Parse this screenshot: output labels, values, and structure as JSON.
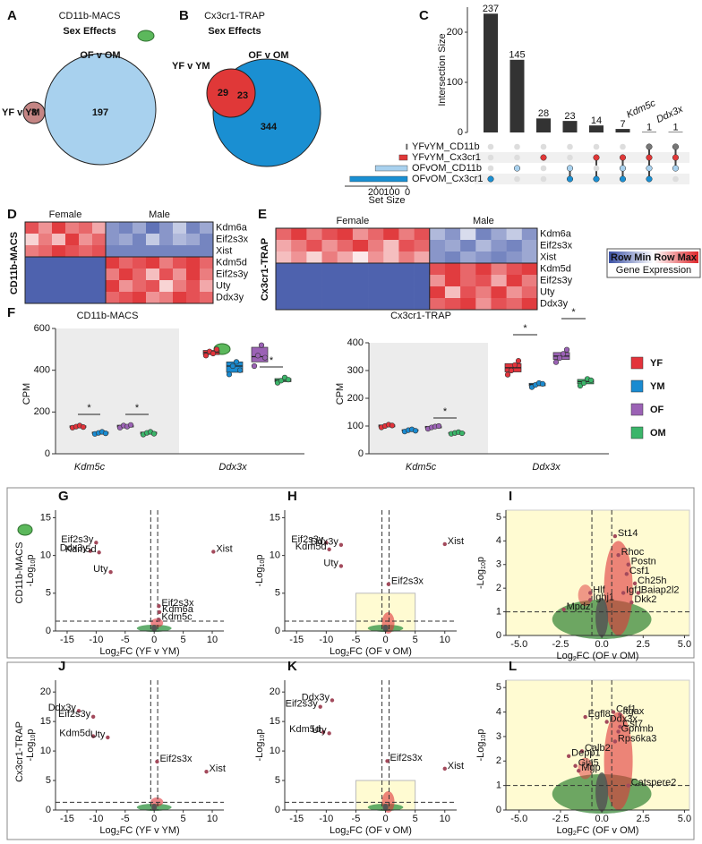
{
  "venn": [
    {
      "letter": "A",
      "title": "CD11b-MACS",
      "subtitle": "Sex Effects",
      "outer_label": "OF v OM",
      "inner_label": "YF v YM",
      "counts": [
        8,
        197
      ],
      "colors": [
        "#a8d1ee",
        "#c48584"
      ]
    },
    {
      "letter": "B",
      "title": "Cx3cr1-TRAP",
      "subtitle": "Sex Effects",
      "outer_label": "OF v OM",
      "inner_label": "YF v YM",
      "counts": [
        29,
        23,
        344
      ],
      "colors": [
        "#1a8fd2",
        "#e03838"
      ]
    }
  ],
  "upset": {
    "letter": "C",
    "y_label": "Intersection Size",
    "ylim": [
      0,
      250
    ],
    "yticks": [
      0,
      100,
      200
    ],
    "bars": [
      237,
      145,
      28,
      23,
      14,
      7,
      1,
      1
    ],
    "sets": [
      "YFvYM_CD11b",
      "YFvYM_Cx3cr1",
      "OFvOM_CD11b",
      "OFvOM_Cx3cr1"
    ],
    "set_sizes": [
      8,
      52,
      205,
      367
    ],
    "set_colors": [
      "#777777",
      "#e03838",
      "#a8d1ee",
      "#1a8fd2"
    ],
    "set_size_ticks": [
      200,
      100,
      0
    ],
    "set_size_label": "Set Size",
    "members": [
      [
        3
      ],
      [
        2
      ],
      [
        1
      ],
      [
        2,
        3
      ],
      [
        1,
        3
      ],
      [
        1,
        2,
        3
      ],
      [
        0,
        1,
        2,
        3
      ],
      [
        0,
        1,
        2
      ]
    ],
    "annotations": [
      "Kdm5c",
      "Ddx3x"
    ]
  },
  "heatmaps": [
    {
      "letter": "D",
      "row_title": "CD11b-MACS",
      "group_labels": [
        "Female",
        "Male"
      ],
      "group_sizes": [
        6,
        8
      ],
      "genes": [
        "Kdm6a",
        "Eif2s3x",
        "Xist",
        "Kdm5d",
        "Eif2s3y",
        "Uty",
        "Ddx3y"
      ],
      "values": [
        [
          0.8,
          0.5,
          0.9,
          0.6,
          0.7,
          0.4,
          -0.6,
          -0.7,
          -0.5,
          -0.8,
          -0.6,
          -0.3,
          -0.7,
          -0.5
        ],
        [
          0.2,
          0.6,
          0.3,
          0.9,
          0.5,
          0.7,
          -0.6,
          -0.5,
          -0.7,
          -0.3,
          -0.6,
          -0.4,
          -0.5,
          -0.7
        ],
        [
          0.6,
          0.7,
          0.9,
          0.8,
          0.7,
          0.8,
          -0.7,
          -0.7,
          -0.7,
          -0.7,
          -0.7,
          -0.7,
          -0.7,
          -0.7
        ],
        [
          -0.9,
          -0.9,
          -0.9,
          -0.9,
          -0.9,
          -0.9,
          0.9,
          0.7,
          0.8,
          0.9,
          0.6,
          0.8,
          0.9,
          0.7
        ],
        [
          -0.9,
          -0.9,
          -0.9,
          -0.9,
          -0.9,
          -0.9,
          0.6,
          0.9,
          0.7,
          0.3,
          0.8,
          0.5,
          0.9,
          0.6
        ],
        [
          -0.9,
          -0.9,
          -0.9,
          -0.9,
          -0.9,
          -0.9,
          0.9,
          0.5,
          0.7,
          0.8,
          0.2,
          0.6,
          0.8,
          0.4
        ],
        [
          -0.9,
          -0.9,
          -0.9,
          -0.9,
          -0.9,
          -0.9,
          0.7,
          0.8,
          0.9,
          0.5,
          0.6,
          0.9,
          0.8,
          0.7
        ]
      ]
    },
    {
      "letter": "E",
      "row_title": "Cx3cr1-TRAP",
      "group_labels": [
        "Female",
        "Male"
      ],
      "group_sizes": [
        10,
        7
      ],
      "genes": [
        "Kdm6a",
        "Eif2s3x",
        "Xist",
        "Kdm5d",
        "Eif2s3y",
        "Uty",
        "Ddx3y"
      ],
      "values": [
        [
          0.7,
          0.9,
          0.6,
          0.8,
          0.9,
          0.5,
          0.7,
          0.9,
          0.6,
          0.8,
          -0.4,
          -0.6,
          -0.2,
          -0.7,
          -0.5,
          -0.3,
          -0.6
        ],
        [
          0.4,
          0.6,
          0.8,
          0.5,
          0.7,
          0.9,
          0.6,
          0.3,
          0.8,
          0.7,
          -0.6,
          -0.5,
          -0.7,
          -0.4,
          -0.6,
          -0.7,
          -0.5
        ],
        [
          0.3,
          0.5,
          0.2,
          0.6,
          0.4,
          0.1,
          0.5,
          0.3,
          0.6,
          0.4,
          -0.6,
          -0.7,
          -0.5,
          -0.6,
          -0.7,
          -0.6,
          -0.5
        ],
        [
          -0.9,
          -0.9,
          -0.9,
          -0.9,
          -0.9,
          -0.9,
          -0.9,
          -0.9,
          -0.9,
          -0.9,
          0.8,
          0.9,
          0.7,
          0.9,
          0.6,
          0.8,
          0.9
        ],
        [
          -0.9,
          -0.9,
          -0.9,
          -0.9,
          -0.9,
          -0.9,
          -0.9,
          -0.9,
          -0.9,
          -0.9,
          0.5,
          0.9,
          0.7,
          0.8,
          0.4,
          0.9,
          0.6
        ],
        [
          -0.9,
          -0.9,
          -0.9,
          -0.9,
          -0.9,
          -0.9,
          -0.9,
          -0.9,
          -0.9,
          -0.9,
          0.9,
          0.3,
          0.8,
          0.6,
          0.9,
          0.5,
          0.7
        ],
        [
          -0.9,
          -0.9,
          -0.9,
          -0.9,
          -0.9,
          -0.9,
          -0.9,
          -0.9,
          -0.9,
          -0.9,
          0.7,
          0.8,
          0.9,
          0.5,
          0.8,
          0.7,
          0.9
        ]
      ]
    }
  ],
  "heatmap_legend": {
    "min_label": "Row Min",
    "max_label": "Row Max",
    "title": "Gene Expression"
  },
  "boxplots": {
    "letter": "F",
    "y_label": "CPM",
    "groups": [
      {
        "name": "YF",
        "color": "#e3333b"
      },
      {
        "name": "YM",
        "color": "#1a8bd1"
      },
      {
        "name": "OF",
        "color": "#9b62b5"
      },
      {
        "name": "OM",
        "color": "#3bb56a"
      }
    ],
    "panels": [
      {
        "title": "CD11b-MACS",
        "ylim": [
          0,
          600
        ],
        "yticks": [
          0,
          200,
          400,
          600
        ],
        "genes": [
          "Kdm5c",
          "Ddx3x"
        ],
        "points": [
          [
            [
              125,
              130,
              135,
              128
            ],
            [
              95,
              100,
              105,
              98
            ],
            [
              125,
              135,
              130,
              138
            ],
            [
              92,
              100,
              105,
              96
            ]
          ],
          [
            [
              470,
              490,
              480,
              500
            ],
            [
              380,
              420,
              440,
              400
            ],
            [
              420,
              470,
              520,
              460
            ],
            [
              340,
              350,
              365,
              355
            ]
          ]
        ],
        "boxes": [
          [
            [
              126,
              130,
              134
            ],
            [
              97,
              100,
              104
            ],
            [
              128,
              133,
              137
            ],
            [
              95,
              99,
              104
            ]
          ],
          [
            [
              475,
              485,
              495
            ],
            [
              390,
              420,
              440
            ],
            [
              440,
              465,
              510
            ],
            [
              345,
              352,
              360
            ]
          ]
        ],
        "sig_labels": [
          "*",
          "*",
          "*"
        ]
      },
      {
        "title": "Cx3cr1-TRAP",
        "ylim": [
          0,
          400
        ],
        "yticks": [
          0,
          100,
          200,
          300,
          400
        ],
        "genes": [
          "Kdm5c",
          "Ddx3x"
        ],
        "points": [
          [
            [
              95,
              100,
              105,
              102
            ],
            [
              80,
              85,
              88,
              83
            ],
            [
              90,
              95,
              98,
              100
            ],
            [
              72,
              75,
              78,
              74
            ]
          ],
          [
            [
              285,
              300,
              320,
              335
            ],
            [
              240,
              248,
              255,
              252
            ],
            [
              330,
              345,
              360,
              375
            ],
            [
              245,
              255,
              270,
              265
            ]
          ]
        ],
        "boxes": [
          [
            [
              97,
              101,
              104
            ],
            [
              82,
              84,
              87
            ],
            [
              93,
              96,
              99
            ],
            [
              73,
              75,
              77
            ]
          ],
          [
            [
              295,
              310,
              325
            ],
            [
              245,
              250,
              254
            ],
            [
              340,
              352,
              365
            ],
            [
              252,
              260,
              268
            ]
          ]
        ],
        "sig_labels": [
          "*",
          "*",
          "*"
        ]
      }
    ]
  },
  "volcano": {
    "row_labels": [
      "CD11b-MACS",
      "Cx3cr1-TRAP"
    ],
    "y_label": [
      "-Log",
      "10",
      "p"
    ],
    "panels": [
      {
        "letter": "G",
        "x_label": [
          "Log",
          "2",
          "FC (YF v YM)"
        ],
        "xlim": [
          -17,
          12
        ],
        "xticks": [
          -15,
          -10,
          -5,
          0,
          5,
          10
        ],
        "ylim": [
          0,
          16
        ],
        "yticks": [
          0,
          5,
          10,
          15
        ],
        "vlines": [
          -0.6,
          0.6
        ],
        "hline": 1.3,
        "points": [
          {
            "label": "Eif2s3y",
            "x": -10,
            "y": 11.7
          },
          {
            "label": "Ddx3y",
            "x": -11,
            "y": 10.6
          },
          {
            "label": "Kdm5d",
            "x": -9.5,
            "y": 10.4
          },
          {
            "label": "Uty",
            "x": -7.5,
            "y": 7.8
          },
          {
            "label": "Xist",
            "x": 10.2,
            "y": 10.5
          },
          {
            "label": "Eif2s3x",
            "x": 0.8,
            "y": 3.3
          },
          {
            "label": "Kdm6a",
            "x": 0.9,
            "y": 2.5
          },
          {
            "label": "Kdm5c",
            "x": 0.8,
            "y": 1.5
          }
        ]
      },
      {
        "letter": "H",
        "x_label": [
          "Log",
          "2",
          "FC (OF v OM)"
        ],
        "xlim": [
          -17,
          12
        ],
        "xticks": [
          -15,
          -10,
          -5,
          0,
          5,
          10
        ],
        "ylim": [
          0,
          16
        ],
        "yticks": [
          0,
          5,
          10,
          15
        ],
        "vlines": [
          -0.6,
          0.6
        ],
        "hline": 1.3,
        "highlight": {
          "xlim": [
            -5,
            5
          ],
          "ylim": [
            0,
            5
          ]
        },
        "points": [
          {
            "label": "Eif2s3y",
            "x": -10,
            "y": 11.7
          },
          {
            "label": "Kdm5d",
            "x": -9.5,
            "y": 10.8
          },
          {
            "label": "Ddx3y",
            "x": -7.5,
            "y": 11.4
          },
          {
            "label": "Uty",
            "x": -7.5,
            "y": 8.6
          },
          {
            "label": "Xist",
            "x": 10,
            "y": 11.5
          },
          {
            "label": "Eif2s3x",
            "x": 0.5,
            "y": 6.2
          }
        ]
      },
      {
        "letter": "I",
        "x_label": [
          "Log",
          "2",
          "FC (OF v OM)"
        ],
        "xlim": [
          -5.8,
          5.3
        ],
        "xticks": [
          {
            "value": -5,
            "label": "-5.0"
          },
          -2.5,
          {
            "value": 0,
            "label": "0.0"
          },
          2.5,
          {
            "value": 5,
            "label": "5.0"
          }
        ],
        "ylim": [
          0,
          5.3
        ],
        "yticks": [
          0,
          1,
          2,
          3,
          4,
          5
        ],
        "vlines": [
          -0.6,
          0.6
        ],
        "hline": 1,
        "background_color": "#fffbd2",
        "points": [
          {
            "label": "St14",
            "x": 0.8,
            "y": 4.2
          },
          {
            "label": "Rhoc",
            "x": 1.0,
            "y": 3.4
          },
          {
            "label": "Postn",
            "x": 1.6,
            "y": 3.0
          },
          {
            "label": "Csf1",
            "x": 1.5,
            "y": 2.6
          },
          {
            "label": "Ch25h",
            "x": 2.0,
            "y": 2.2
          },
          {
            "label": "Igf1",
            "x": 1.3,
            "y": 1.8
          },
          {
            "label": "Baiap2l2",
            "x": 2.2,
            "y": 1.8
          },
          {
            "label": "Dkk2",
            "x": 1.8,
            "y": 1.4
          },
          {
            "label": "Hlf",
            "x": -0.7,
            "y": 1.8
          },
          {
            "label": "Ighj1",
            "x": -0.7,
            "y": 1.5
          },
          {
            "label": "Mpdz",
            "x": -2.3,
            "y": 1.1
          }
        ]
      },
      {
        "letter": "J",
        "x_label": [
          "Log",
          "2",
          "FC (YF v YM)"
        ],
        "xlim": [
          -17,
          12
        ],
        "xticks": [
          -15,
          -10,
          -5,
          0,
          5,
          10
        ],
        "ylim": [
          0,
          22
        ],
        "yticks": [
          0,
          5,
          10,
          15,
          20
        ],
        "vlines": [
          -0.6,
          0.6
        ],
        "hline": 1.3,
        "points": [
          {
            "label": "Ddx3y",
            "x": -13,
            "y": 16.8
          },
          {
            "label": "Eif2s3y",
            "x": -10.5,
            "y": 15.8
          },
          {
            "label": "Kdm5d",
            "x": -10.5,
            "y": 12.5
          },
          {
            "label": "Uty",
            "x": -8,
            "y": 12.3
          },
          {
            "label": "Eif2s3x",
            "x": 0.5,
            "y": 8.2
          },
          {
            "label": "Xist",
            "x": 9,
            "y": 6.5
          }
        ]
      },
      {
        "letter": "K",
        "x_label": [
          "Log",
          "2",
          "FC (OF v OM)"
        ],
        "xlim": [
          -17,
          12
        ],
        "xticks": [
          -15,
          -10,
          -5,
          0,
          5,
          10
        ],
        "ylim": [
          0,
          22
        ],
        "yticks": [
          0,
          5,
          10,
          15,
          20
        ],
        "vlines": [
          -0.6,
          0.6
        ],
        "hline": 1.3,
        "highlight": {
          "xlim": [
            -5,
            5
          ],
          "ylim": [
            0,
            5
          ]
        },
        "points": [
          {
            "label": "Eif2s3y",
            "x": -11,
            "y": 17.5
          },
          {
            "label": "Ddx3y",
            "x": -9,
            "y": 18.6
          },
          {
            "label": "Kdm5d",
            "x": -10.5,
            "y": 13.2
          },
          {
            "label": "Uty",
            "x": -9.5,
            "y": 13
          },
          {
            "label": "Eif2s3x",
            "x": 0.3,
            "y": 8.3
          },
          {
            "label": "Xist",
            "x": 10,
            "y": 7
          }
        ]
      },
      {
        "letter": "L",
        "x_label": [
          "Log",
          "2",
          "FC (OF v OM)"
        ],
        "xlim": [
          -5.8,
          5.3
        ],
        "xticks": [
          {
            "value": -5,
            "label": "-5.0"
          },
          -2.5,
          {
            "value": 0,
            "label": "0.0"
          },
          2.5,
          {
            "value": 5,
            "label": "5.0"
          }
        ],
        "ylim": [
          0,
          5.3
        ],
        "yticks": [
          0,
          1,
          2,
          3,
          4,
          5
        ],
        "vlines": [
          -0.6,
          0.6
        ],
        "hline": 1,
        "background_color": "#fffbd2",
        "points": [
          {
            "label": "Csf1",
            "x": 0.7,
            "y": 4.0
          },
          {
            "label": "Itgax",
            "x": 1.1,
            "y": 3.9
          },
          {
            "label": "Egfl8",
            "x": -1.0,
            "y": 3.8
          },
          {
            "label": "Ddx3x",
            "x": 0.3,
            "y": 3.6
          },
          {
            "label": "Cst7",
            "x": 1.1,
            "y": 3.4
          },
          {
            "label": "Gpnmb",
            "x": 1.0,
            "y": 3.2
          },
          {
            "label": "Rps6ka3",
            "x": 0.8,
            "y": 2.8
          },
          {
            "label": "Calb2",
            "x": -1.2,
            "y": 2.4
          },
          {
            "label": "Depp1",
            "x": -2.0,
            "y": 2.2
          },
          {
            "label": "Gja5",
            "x": -1.6,
            "y": 1.8
          },
          {
            "label": "Mgp",
            "x": -1.4,
            "y": 1.6
          },
          {
            "label": "Catspere2",
            "x": 1.6,
            "y": 1.0
          }
        ]
      }
    ]
  }
}
